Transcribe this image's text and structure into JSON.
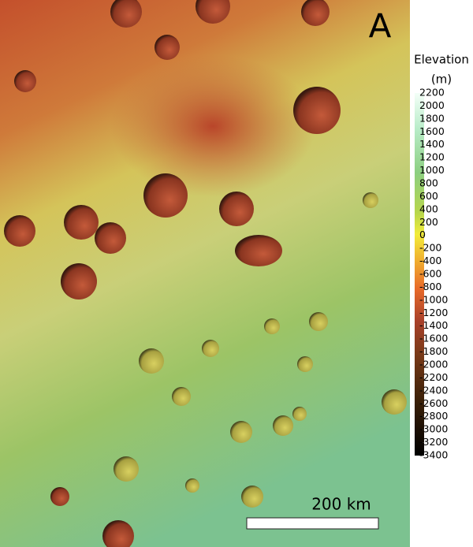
{
  "panel_label": "A",
  "colorbar": {
    "title": [
      "Elevation",
      "(m)"
    ],
    "range": [
      -3400,
      2200
    ],
    "ticks": [
      2200,
      2000,
      1800,
      1600,
      1400,
      1200,
      1000,
      800,
      600,
      400,
      200,
      0,
      -200,
      -400,
      -600,
      -800,
      -1000,
      -1200,
      -1400,
      -1600,
      -1800,
      -2000,
      -2200,
      -2400,
      -2600,
      -2800,
      -3000,
      -3200,
      -3400
    ]
  },
  "scale_bar": {
    "label": "200 km"
  }
}
